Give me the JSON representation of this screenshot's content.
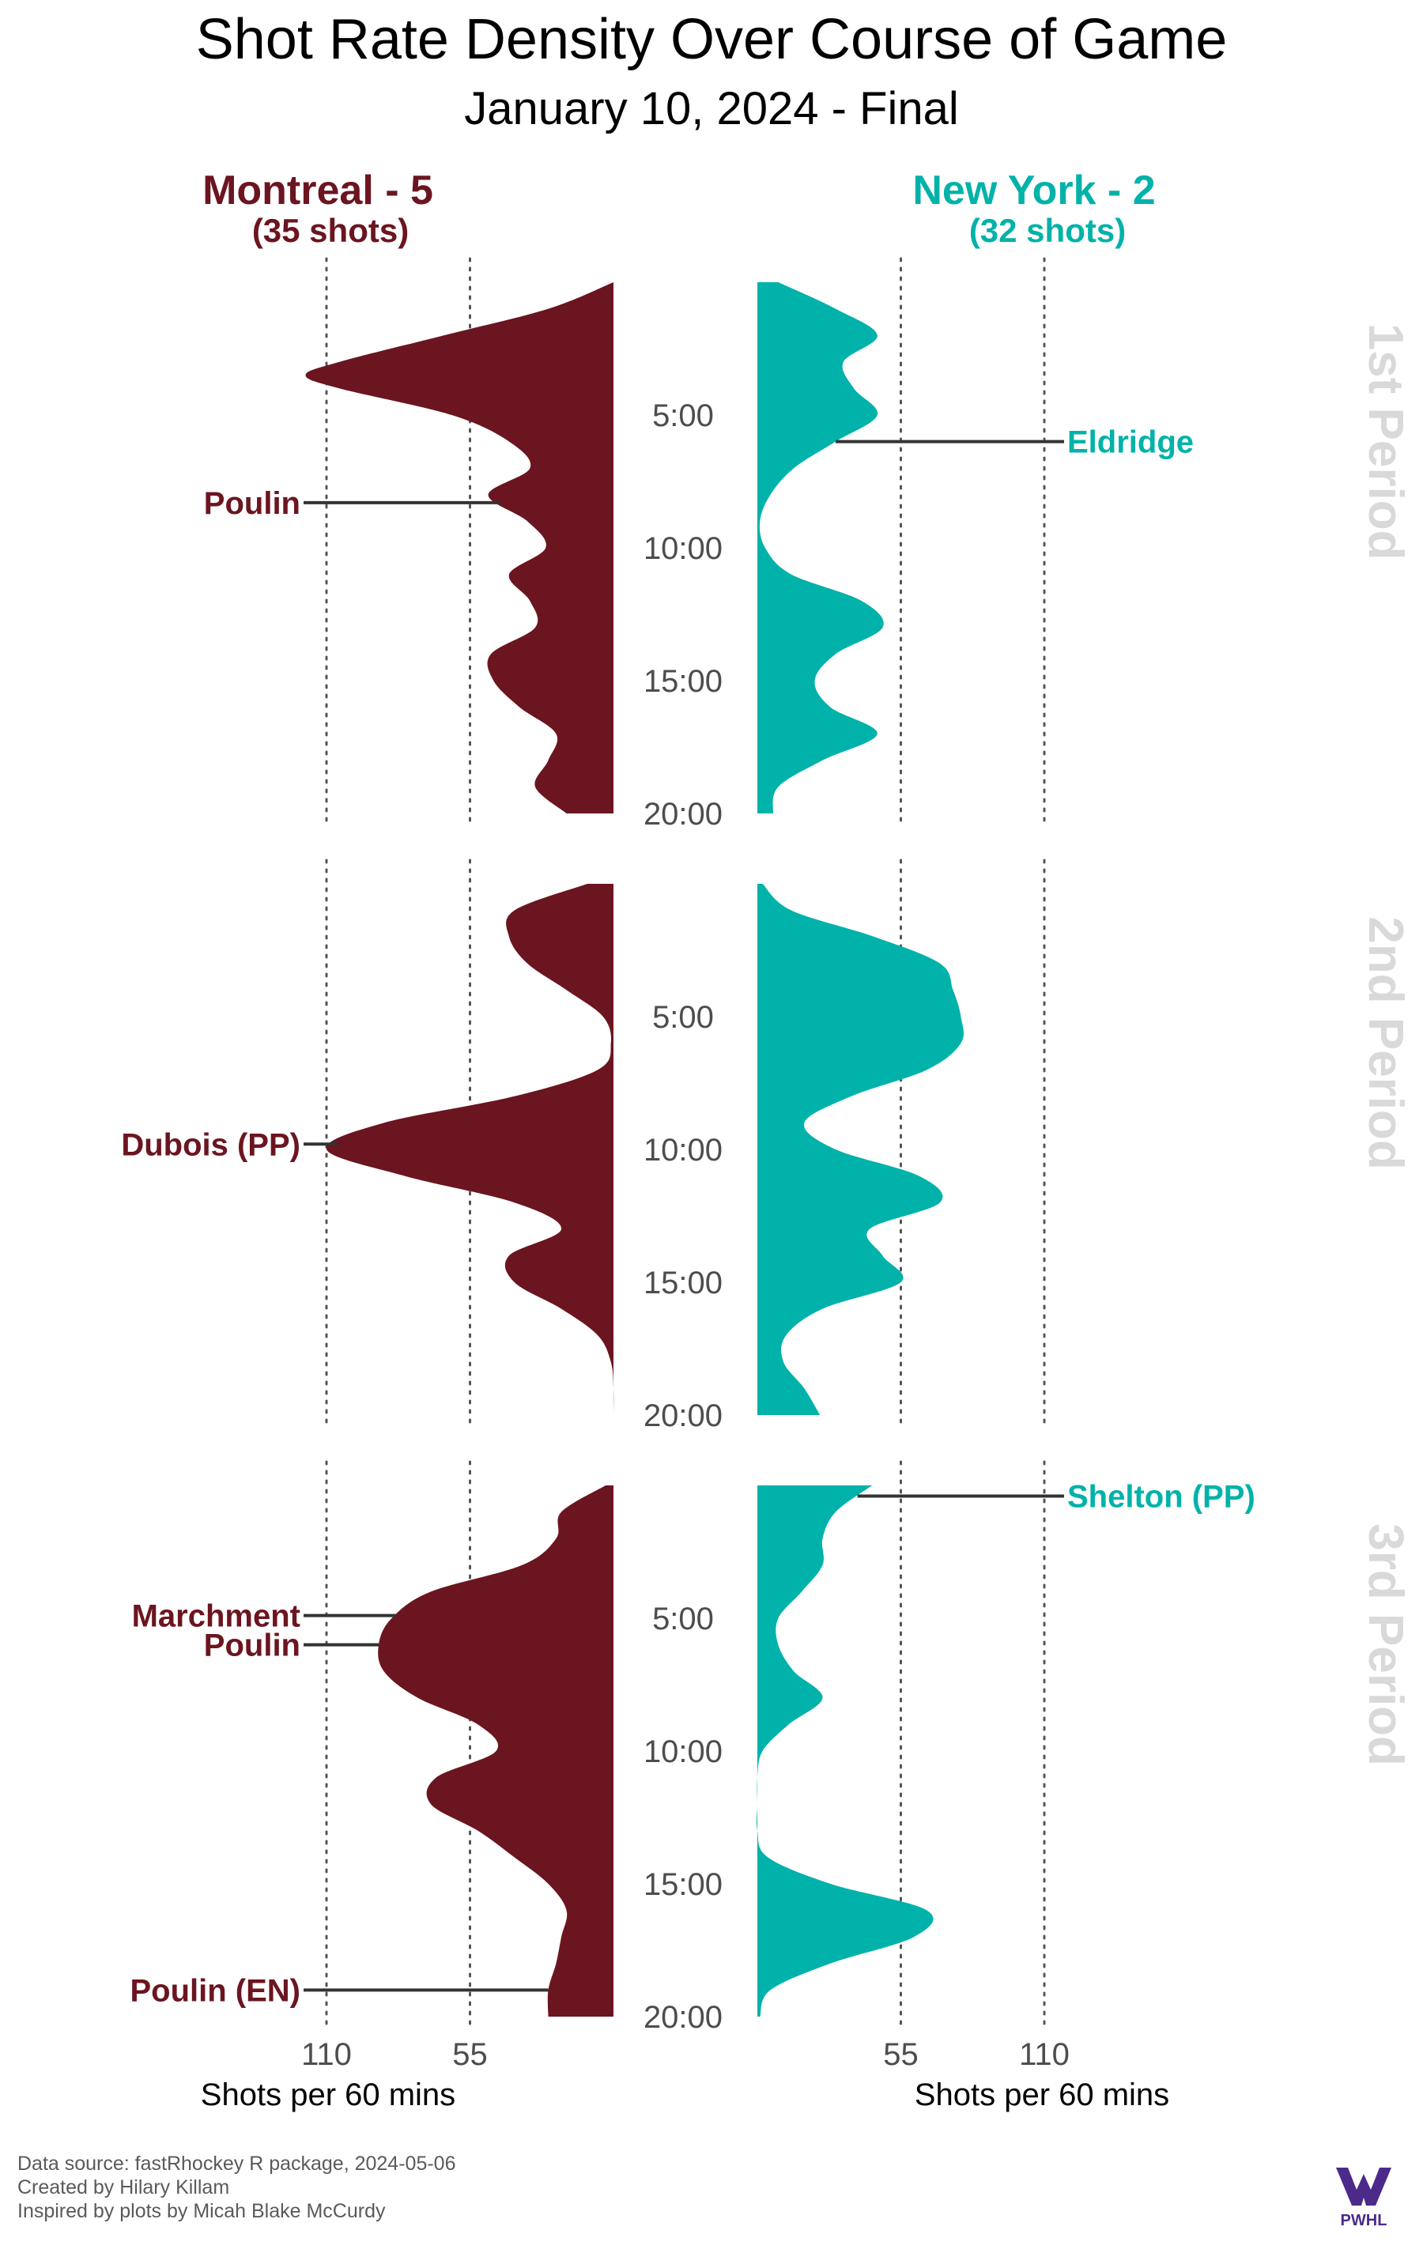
{
  "chart_data": {
    "type": "area",
    "title": "Shot Rate Density Over Course of Game",
    "subtitle": "January 10, 2024 - Final",
    "teams": {
      "home": {
        "label": "Montreal - 5",
        "shots_label": "(35 shots)",
        "color": "#6b1520"
      },
      "away": {
        "label": "New York - 2",
        "shots_label": "(32 shots)",
        "color": "#00b2a9"
      }
    },
    "periods": [
      "1st Period",
      "2nd Period",
      "3rd Period"
    ],
    "time_ticks": [
      "5:00",
      "10:00",
      "15:00",
      "20:00"
    ],
    "x_axis": {
      "home_ticks": [
        {
          "value": 110,
          "label": "110"
        },
        {
          "value": 55,
          "label": "55"
        }
      ],
      "away_ticks": [
        {
          "value": 55,
          "label": "55"
        },
        {
          "value": 110,
          "label": "110"
        }
      ],
      "xlabel": "Shots per 60 mins",
      "xlim": [
        0,
        120
      ]
    },
    "series": [
      {
        "team": "home",
        "period": 1,
        "minutes": [
          0,
          1,
          2,
          3,
          3.5,
          4,
          5,
          6,
          7,
          8,
          9,
          10,
          11,
          12,
          13,
          14,
          15,
          16,
          17,
          18,
          19,
          20
        ],
        "values": [
          0,
          25,
          65,
          105,
          118,
          105,
          62,
          40,
          32,
          48,
          33,
          26,
          40,
          32,
          30,
          47,
          46,
          36,
          22,
          25,
          30,
          18
        ]
      },
      {
        "team": "away",
        "period": 1,
        "minutes": [
          0,
          1,
          2,
          3,
          4,
          5,
          6,
          7,
          8,
          9,
          10,
          11,
          12,
          13,
          14,
          15,
          16,
          17,
          18,
          19,
          20
        ],
        "values": [
          8,
          30,
          46,
          33,
          37,
          46,
          30,
          14,
          5,
          1,
          3,
          13,
          40,
          48,
          30,
          22,
          28,
          46,
          25,
          8,
          6
        ]
      },
      {
        "team": "home",
        "period": 2,
        "minutes": [
          0,
          1,
          2,
          3,
          4,
          5,
          6,
          7,
          8,
          9,
          10,
          11,
          12,
          13,
          14,
          15,
          16,
          17,
          18,
          19,
          20
        ],
        "values": [
          10,
          38,
          40,
          33,
          18,
          4,
          1,
          6,
          38,
          88,
          110,
          80,
          38,
          20,
          40,
          38,
          20,
          6,
          1,
          0,
          0
        ]
      },
      {
        "team": "away",
        "period": 2,
        "minutes": [
          0,
          1,
          2,
          3,
          4,
          5,
          6,
          7,
          8,
          9,
          10,
          11,
          12,
          13,
          14,
          15,
          16,
          17,
          18,
          19,
          20
        ],
        "values": [
          2,
          13,
          45,
          70,
          75,
          78,
          78,
          65,
          36,
          18,
          30,
          62,
          70,
          43,
          48,
          55,
          25,
          11,
          10,
          18,
          24
        ]
      },
      {
        "team": "home",
        "period": 3,
        "minutes": [
          0,
          1,
          2,
          3,
          4,
          5,
          6,
          7,
          8,
          9,
          10,
          11,
          12,
          13,
          14,
          15,
          16,
          17,
          18,
          19,
          20
        ],
        "values": [
          3,
          20,
          22,
          35,
          70,
          85,
          90,
          88,
          75,
          52,
          45,
          68,
          70,
          52,
          38,
          25,
          18,
          20,
          22,
          25,
          25
        ]
      },
      {
        "team": "away",
        "period": 3,
        "minutes": [
          0,
          1,
          2,
          3,
          4,
          5,
          6,
          7,
          8,
          9,
          10,
          11,
          12,
          13,
          14,
          15,
          16,
          17,
          18,
          19,
          20
        ],
        "values": [
          44,
          30,
          25,
          25,
          17,
          8,
          8,
          14,
          25,
          12,
          2,
          0,
          0,
          0,
          4,
          28,
          65,
          60,
          28,
          5,
          1
        ]
      }
    ],
    "goals": [
      {
        "team": "home",
        "period": 1,
        "minute": 8.3,
        "label": "Poulin"
      },
      {
        "team": "away",
        "period": 1,
        "minute": 6.0,
        "label": "Eldridge"
      },
      {
        "team": "home",
        "period": 2,
        "minute": 9.8,
        "label": "Dubois (PP)"
      },
      {
        "team": "away",
        "period": 3,
        "minute": 0.4,
        "label": "Shelton (PP)"
      },
      {
        "team": "home",
        "period": 3,
        "minute": 4.9,
        "label": "Marchment"
      },
      {
        "team": "home",
        "period": 3,
        "minute": 6.0,
        "label": "Poulin"
      },
      {
        "team": "home",
        "period": 3,
        "minute": 19.0,
        "label": "Poulin (EN)"
      }
    ]
  },
  "footer": {
    "lines": [
      "Data source: fastRhockey R package, 2024-05-06",
      "Created by Hilary Killam",
      "Inspired by plots by Micah Blake McCurdy"
    ],
    "logo_text": "PWHL",
    "logo_color": "#4b2a8a"
  }
}
